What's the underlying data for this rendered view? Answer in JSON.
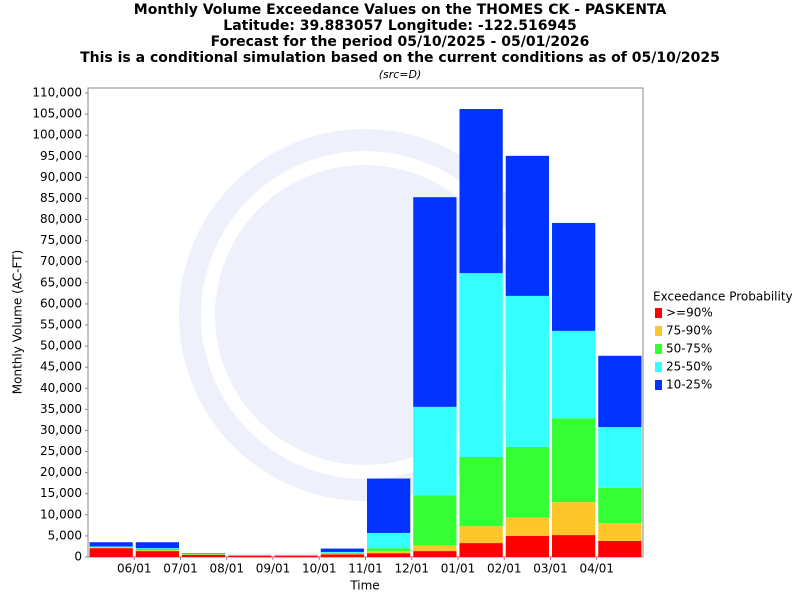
{
  "chart_data": {
    "type": "stacked-bar",
    "title_lines": [
      "Monthly Volume Exceedance Values on the THOMES CK - PASKENTA",
      "Latitude: 39.883057 Longitude: -122.516945",
      "Forecast for the period 05/10/2025 - 05/01/2026",
      "This is a conditional simulation based on the current conditions as of 05/10/2025"
    ],
    "note": "(src=D)",
    "x_label": "Time",
    "y_label": "Monthly Volume (AC-FT)",
    "legend_title": "Exceedance Probability",
    "legend": "right",
    "categories": [
      null,
      "06/01",
      "07/01",
      "08/01",
      "09/01",
      "10/01",
      "11/01",
      "12/01",
      "01/01",
      "02/01",
      "03/01",
      "04/01"
    ],
    "series": [
      {
        "name": ">=90%",
        "color": "#ff0000",
        "values": [
          2100,
          1400,
          500,
          300,
          300,
          600,
          900,
          1400,
          3300,
          5000,
          5200,
          3800
        ]
      },
      {
        "name": "75-90%",
        "color": "#ffc62a",
        "values": [
          100,
          200,
          100,
          50,
          50,
          200,
          500,
          1300,
          4000,
          4300,
          7800,
          4200
        ]
      },
      {
        "name": "50-75%",
        "color": "#33ff33",
        "values": [
          100,
          300,
          100,
          50,
          50,
          200,
          700,
          11900,
          16400,
          16800,
          19900,
          8400
        ]
      },
      {
        "name": "25-50%",
        "color": "#33ffff",
        "values": [
          200,
          200,
          100,
          50,
          50,
          200,
          3600,
          21000,
          43600,
          35800,
          20700,
          14400
        ]
      },
      {
        "name": "10-25%",
        "color": "#0033ff",
        "values": [
          1000,
          1400,
          100,
          50,
          50,
          800,
          12900,
          49700,
          38900,
          33200,
          25600,
          16900
        ]
      }
    ],
    "ylim": [
      0,
      110000
    ],
    "yticks": [
      0,
      {
        "value": 5000,
        "label": "5,000"
      },
      {
        "value": 10000,
        "label": "10,000"
      },
      {
        "value": 15000,
        "label": "15,000"
      },
      {
        "value": 20000,
        "label": "20,000"
      },
      {
        "value": 25000,
        "label": "25,000"
      },
      {
        "value": 30000,
        "label": "30,000"
      },
      {
        "value": 35000,
        "label": "35,000"
      },
      {
        "value": 40000,
        "label": "40,000"
      },
      {
        "value": 45000,
        "label": "45,000"
      },
      {
        "value": 50000,
        "label": "50,000"
      },
      {
        "value": 55000,
        "label": "55,000"
      },
      {
        "value": 60000,
        "label": "60,000"
      },
      {
        "value": 65000,
        "label": "65,000"
      },
      {
        "value": 70000,
        "label": "70,000"
      },
      {
        "value": 75000,
        "label": "75,000"
      },
      {
        "value": 80000,
        "label": "80,000"
      },
      {
        "value": 85000,
        "label": "85,000"
      },
      {
        "value": 90000,
        "label": "90,000"
      },
      {
        "value": 95000,
        "label": "95,000"
      },
      {
        "value": 100000,
        "label": "100,000"
      },
      {
        "value": 105000,
        "label": "105,000"
      },
      {
        "value": 110000,
        "label": "110,000"
      }
    ],
    "grid": false
  }
}
